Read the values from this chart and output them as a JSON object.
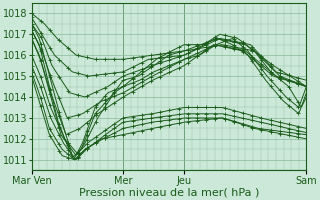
{
  "bg_color": "#cce8d8",
  "grid_color": "#88bb99",
  "line_color": "#1a5c1a",
  "xlabel": "Pression niveau de la mer( hPa )",
  "xtick_labels": [
    "Mar Ven",
    "Mer",
    "Jeu",
    "Sam"
  ],
  "xtick_positions": [
    0,
    72,
    120,
    216
  ],
  "ylim": [
    1010.5,
    1018.5
  ],
  "yticks": [
    1011,
    1012,
    1013,
    1014,
    1015,
    1016,
    1017,
    1018
  ],
  "total_points": 216,
  "xlabel_fontsize": 8,
  "tick_fontsize": 7
}
